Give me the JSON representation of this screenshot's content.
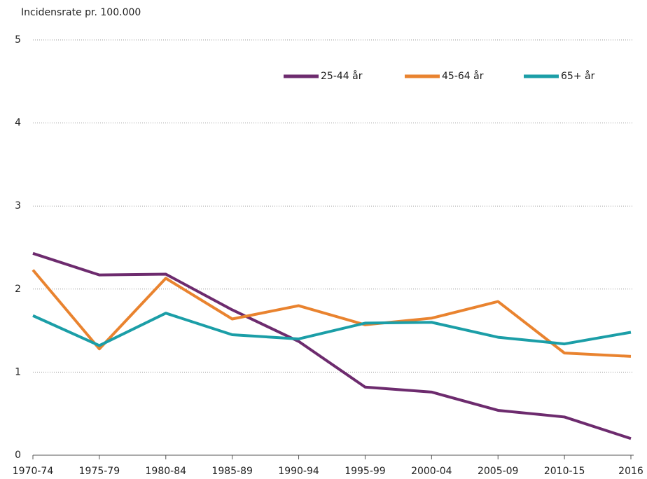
{
  "chart_data": {
    "type": "line",
    "y_label": "Incidensrate pr. 100.000",
    "categories": [
      "1970-74",
      "1975-79",
      "1980-84",
      "1985-89",
      "1990-94",
      "1995-99",
      "2000-04",
      "2005-09",
      "2010-15",
      "2016"
    ],
    "series": [
      {
        "name": "25-44 år",
        "color": "#6d2b6e",
        "values": [
          2.43,
          2.17,
          2.18,
          1.75,
          1.37,
          0.82,
          0.76,
          0.54,
          0.46,
          0.2
        ]
      },
      {
        "name": "45-64 år",
        "color": "#e9832f",
        "values": [
          2.23,
          1.28,
          2.13,
          1.64,
          1.8,
          1.57,
          1.65,
          1.85,
          1.23,
          1.19
        ]
      },
      {
        "name": "65+ år",
        "color": "#1b9ea7",
        "values": [
          1.68,
          1.32,
          1.71,
          1.45,
          1.4,
          1.59,
          1.6,
          1.42,
          1.34,
          1.48
        ]
      }
    ],
    "ylim": [
      0,
      5
    ],
    "yticks": [
      0,
      1,
      2,
      3,
      4,
      5
    ],
    "grid": true,
    "legend": "top-right"
  }
}
